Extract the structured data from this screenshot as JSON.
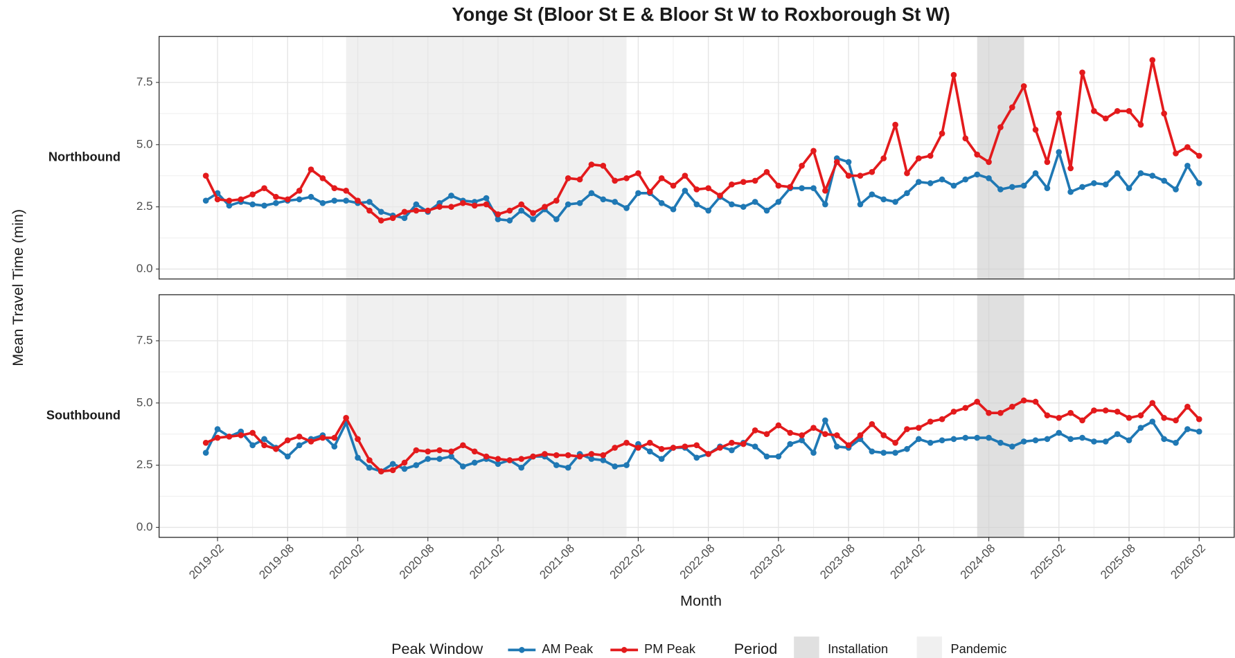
{
  "chart_data": {
    "type": "line",
    "title": "Yonge St (Bloor St E & Bloor St W to Roxborough St W)",
    "x_label": "Month",
    "y_label": "Mean Travel Time (min)",
    "x": [
      "2019-01",
      "2019-02",
      "2019-03",
      "2019-04",
      "2019-05",
      "2019-06",
      "2019-07",
      "2019-08",
      "2019-09",
      "2019-10",
      "2019-11",
      "2019-12",
      "2020-01",
      "2020-02",
      "2020-03",
      "2020-04",
      "2020-05",
      "2020-06",
      "2020-07",
      "2020-08",
      "2020-09",
      "2020-10",
      "2020-11",
      "2020-12",
      "2021-01",
      "2021-02",
      "2021-03",
      "2021-04",
      "2021-05",
      "2021-06",
      "2021-07",
      "2021-08",
      "2021-09",
      "2021-10",
      "2021-11",
      "2021-12",
      "2022-01",
      "2022-02",
      "2022-03",
      "2022-04",
      "2022-05",
      "2022-06",
      "2022-07",
      "2022-08",
      "2022-09",
      "2022-10",
      "2022-11",
      "2022-12",
      "2023-01",
      "2023-02",
      "2023-03",
      "2023-04",
      "2023-05",
      "2023-06",
      "2023-07",
      "2023-08",
      "2023-09",
      "2023-10",
      "2023-11",
      "2023-12",
      "2024-01",
      "2024-02",
      "2024-03",
      "2024-04",
      "2024-05",
      "2024-06",
      "2024-07",
      "2024-08",
      "2024-09",
      "2024-10",
      "2024-11",
      "2024-12",
      "2025-01",
      "2025-02",
      "2025-03",
      "2025-04",
      "2025-05",
      "2025-06",
      "2025-07",
      "2025-08",
      "2025-09",
      "2025-10",
      "2025-11",
      "2025-12",
      "2026-01",
      "2026-02"
    ],
    "xlim": [
      "2018-09",
      "2026-05"
    ],
    "xticks": [
      "2019-02",
      "2019-08",
      "2020-02",
      "2020-08",
      "2021-02",
      "2021-08",
      "2022-02",
      "2022-08",
      "2023-02",
      "2023-08",
      "2024-02",
      "2024-08",
      "2025-02",
      "2025-08",
      "2026-02"
    ],
    "ylim": [
      -0.4,
      9.35
    ],
    "yticks": [
      {
        "value": 0,
        "label": "0.0"
      },
      2.5,
      {
        "value": 5,
        "label": "5.0"
      },
      7.5
    ],
    "grid": true,
    "legend_title": "Peak Window",
    "period_legend_title": "Period",
    "periods": [
      {
        "name": "Installation",
        "start": "2024-07",
        "end": "2024-11",
        "color": "#cccccc"
      },
      {
        "name": "Pandemic",
        "start": "2020-01",
        "end": "2022-01",
        "color": "#e6e6e6"
      }
    ],
    "facets": [
      {
        "label": "Northbound",
        "series": [
          {
            "name": "AM Peak",
            "color": "#1f78b4",
            "values": [
              2.75,
              3.05,
              2.55,
              2.7,
              2.6,
              2.55,
              2.65,
              2.75,
              2.8,
              2.9,
              2.65,
              2.75,
              2.75,
              2.65,
              2.7,
              2.3,
              2.15,
              2.05,
              2.6,
              2.3,
              2.65,
              2.95,
              2.75,
              2.7,
              2.85,
              2.0,
              1.95,
              2.35,
              2.0,
              2.4,
              2.0,
              2.6,
              2.65,
              3.05,
              2.8,
              2.7,
              2.45,
              3.05,
              3.05,
              2.65,
              2.4,
              3.15,
              2.6,
              2.35,
              2.9,
              2.6,
              2.5,
              2.7,
              2.35,
              2.7,
              3.25,
              3.25,
              3.25,
              2.6,
              4.45,
              4.3,
              2.6,
              3.0,
              2.8,
              2.7,
              3.05,
              3.5,
              3.45,
              3.6,
              3.35,
              3.6,
              3.8,
              3.65,
              3.2,
              3.3,
              3.35,
              3.85,
              3.25,
              4.7,
              3.1,
              3.3,
              3.45,
              3.4,
              3.85,
              3.25,
              3.85,
              3.75,
              3.55,
              3.2,
              4.15,
              3.45
            ]
          },
          {
            "name": "PM Peak",
            "color": "#e31a1c",
            "values": [
              3.75,
              2.8,
              2.75,
              2.8,
              3.0,
              3.25,
              2.9,
              2.8,
              3.15,
              4.0,
              3.65,
              3.25,
              3.15,
              2.75,
              2.35,
              1.95,
              2.05,
              2.3,
              2.35,
              2.35,
              2.5,
              2.5,
              2.65,
              2.55,
              2.6,
              2.2,
              2.35,
              2.6,
              2.25,
              2.5,
              2.75,
              3.65,
              3.6,
              4.2,
              4.15,
              3.55,
              3.65,
              3.85,
              3.1,
              3.65,
              3.35,
              3.75,
              3.2,
              3.25,
              2.95,
              3.4,
              3.5,
              3.55,
              3.9,
              3.35,
              3.3,
              4.15,
              4.75,
              3.15,
              4.3,
              3.75,
              3.75,
              3.9,
              4.45,
              5.8,
              3.85,
              4.45,
              4.55,
              5.45,
              7.8,
              5.25,
              4.6,
              4.3,
              5.7,
              6.5,
              7.35,
              5.6,
              4.3,
              6.25,
              4.05,
              7.9,
              6.35,
              6.05,
              6.35,
              6.35,
              5.8,
              8.4,
              6.25,
              4.65,
              4.9,
              4.55
            ]
          }
        ]
      },
      {
        "label": "Southbound",
        "series": [
          {
            "name": "AM Peak",
            "color": "#1f78b4",
            "values": [
              3.0,
              3.95,
              3.65,
              3.85,
              3.3,
              3.55,
              3.2,
              2.85,
              3.3,
              3.55,
              3.7,
              3.25,
              4.2,
              2.8,
              2.4,
              2.25,
              2.55,
              2.35,
              2.5,
              2.75,
              2.75,
              2.85,
              2.45,
              2.6,
              2.75,
              2.55,
              2.7,
              2.4,
              2.85,
              2.85,
              2.5,
              2.4,
              2.95,
              2.75,
              2.7,
              2.45,
              2.5,
              3.35,
              3.05,
              2.75,
              3.2,
              3.2,
              2.8,
              2.95,
              3.25,
              3.1,
              3.4,
              3.25,
              2.85,
              2.85,
              3.35,
              3.5,
              3.0,
              4.3,
              3.25,
              3.2,
              3.55,
              3.05,
              3.0,
              3.0,
              3.15,
              3.55,
              3.4,
              3.5,
              3.55,
              3.6,
              3.6,
              3.6,
              3.4,
              3.25,
              3.45,
              3.5,
              3.55,
              3.8,
              3.55,
              3.6,
              3.45,
              3.45,
              3.75,
              3.5,
              4.0,
              4.25,
              3.55,
              3.4,
              3.95,
              3.85
            ]
          },
          {
            "name": "PM Peak",
            "color": "#e31a1c",
            "values": [
              3.4,
              3.6,
              3.65,
              3.7,
              3.8,
              3.3,
              3.15,
              3.5,
              3.65,
              3.45,
              3.6,
              3.6,
              4.4,
              3.55,
              2.7,
              2.25,
              2.3,
              2.6,
              3.1,
              3.05,
              3.1,
              3.05,
              3.3,
              3.05,
              2.85,
              2.75,
              2.7,
              2.75,
              2.85,
              2.95,
              2.9,
              2.9,
              2.85,
              2.95,
              2.9,
              3.2,
              3.4,
              3.2,
              3.4,
              3.15,
              3.2,
              3.25,
              3.3,
              2.95,
              3.2,
              3.4,
              3.35,
              3.9,
              3.75,
              4.1,
              3.8,
              3.7,
              4.0,
              3.75,
              3.7,
              3.3,
              3.7,
              4.15,
              3.7,
              3.4,
              3.95,
              4.0,
              4.25,
              4.35,
              4.65,
              4.8,
              5.05,
              4.6,
              4.6,
              4.85,
              5.1,
              5.05,
              4.5,
              4.4,
              4.6,
              4.3,
              4.7,
              4.7,
              4.65,
              4.4,
              4.5,
              5.0,
              4.4,
              4.3,
              4.85,
              4.35
            ]
          }
        ]
      }
    ]
  }
}
